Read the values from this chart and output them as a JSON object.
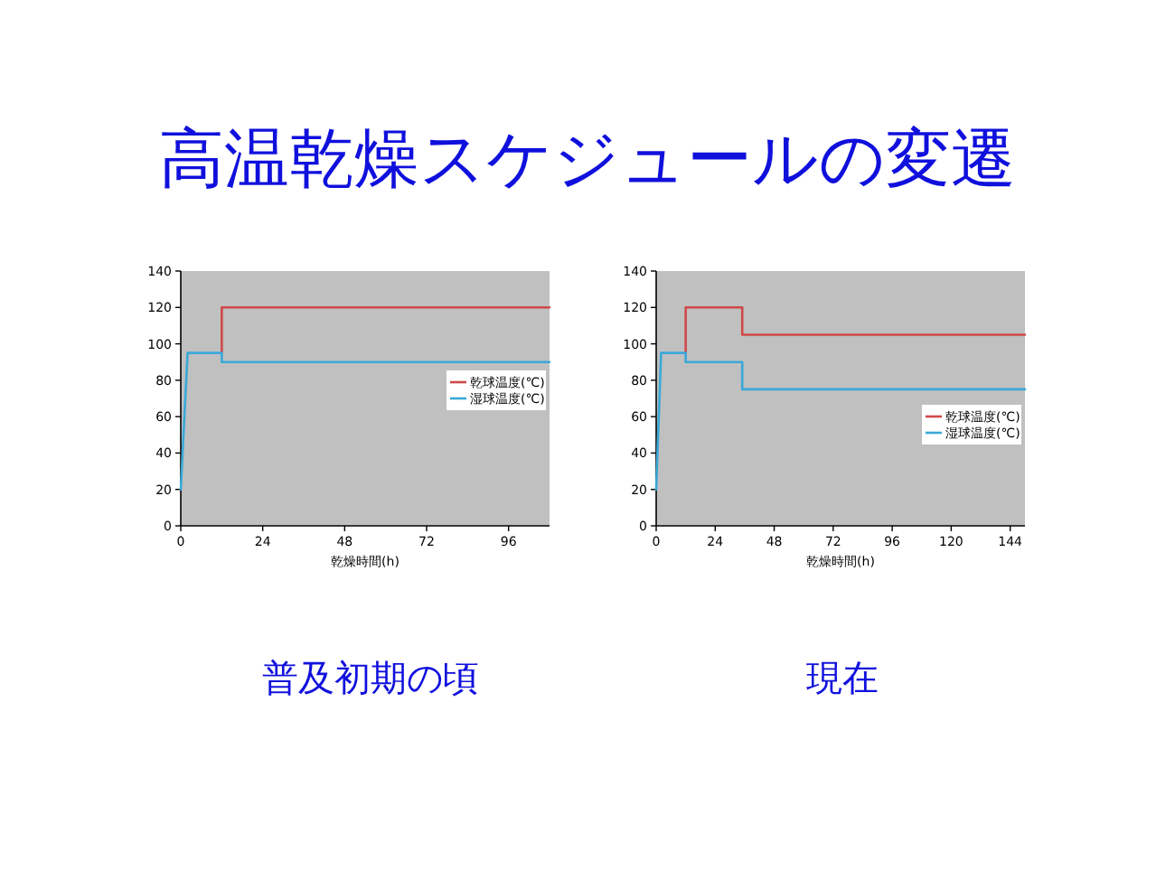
{
  "chart_data": [
    {
      "type": "other",
      "title": "高温乾燥スケジュールの変遷"
    },
    {
      "type": "line",
      "title": "普及初期の頃",
      "xlabel": "乾燥時間(h)",
      "xlim": [
        0,
        108
      ],
      "xticks": [
        0,
        24,
        48,
        72,
        96
      ],
      "ylim": [
        0,
        140
      ],
      "yticks": [
        0,
        20,
        40,
        60,
        80,
        100,
        120,
        140
      ],
      "legend": "right",
      "grid": false,
      "marker": "none",
      "line_style": "solid",
      "series": [
        {
          "name": "乾球温度(℃)",
          "color": "#d04848",
          "x": [
            12,
            12,
            108
          ],
          "values": [
            95,
            120,
            120
          ]
        },
        {
          "name": "湿球温度(℃)",
          "color": "#3aa8d8",
          "x": [
            0,
            2,
            12,
            12,
            108
          ],
          "values": [
            20,
            95,
            95,
            90,
            90
          ]
        }
      ]
    },
    {
      "type": "line",
      "title": "現在",
      "xlabel": "乾燥時間(h)",
      "xlim": [
        0,
        150
      ],
      "xticks": [
        0,
        24,
        48,
        72,
        96,
        120,
        144
      ],
      "ylim": [
        0,
        140
      ],
      "yticks": [
        0,
        20,
        40,
        60,
        80,
        100,
        120,
        140
      ],
      "legend": "center right",
      "grid": false,
      "marker": "none",
      "line_style": "solid",
      "series": [
        {
          "name": "乾球温度(℃)",
          "color": "#d04848",
          "x": [
            12,
            12,
            35,
            35,
            150
          ],
          "values": [
            95,
            120,
            120,
            105,
            105
          ]
        },
        {
          "name": "湿球温度(℃)",
          "color": "#3aa8d8",
          "x": [
            0,
            2,
            12,
            12,
            35,
            35,
            150
          ],
          "values": [
            20,
            95,
            95,
            90,
            90,
            75,
            75
          ]
        }
      ]
    }
  ]
}
